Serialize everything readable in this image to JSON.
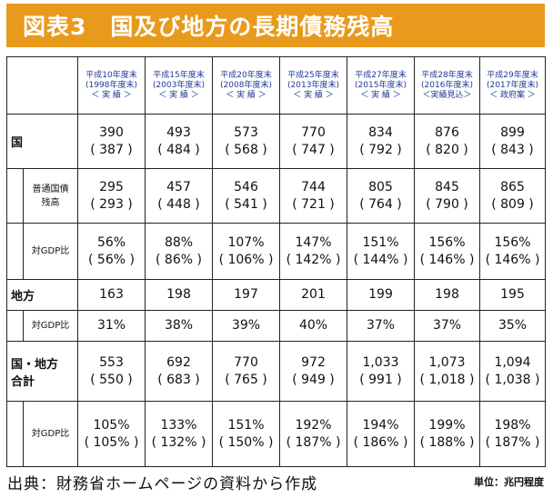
{
  "title": "図表3　国及び地方の長期債務残高",
  "columns": [
    {
      "line1": "平成10年度末",
      "line2": "(1998年度末)",
      "line3": "＜ 実 績 ＞"
    },
    {
      "line1": "平成15年度末",
      "line2": "(2003年度末)",
      "line3": "＜ 実 績 ＞"
    },
    {
      "line1": "平成20年度末",
      "line2": "(2008年度末)",
      "line3": "＜ 実 績 ＞"
    },
    {
      "line1": "平成25年度末",
      "line2": "(2013年度末)",
      "line3": "＜ 実 績 ＞"
    },
    {
      "line1": "平成27年度末",
      "line2": "(2015年度末)",
      "line3": "＜ 実 績 ＞"
    },
    {
      "line1": "平成28年度末",
      "line2": "(2016年度末)",
      "line3": "＜実績見込＞"
    },
    {
      "line1": "平成29年度末",
      "line2": "(2017年度末)",
      "line3": "＜ 政府案 ＞"
    }
  ],
  "rows": {
    "kuni": {
      "label": "国",
      "main": [
        "390",
        "493",
        "573",
        "770",
        "834",
        "876",
        "899"
      ],
      "sub": [
        "( 387 )",
        "( 484 )",
        "( 568 )",
        "( 747 )",
        "( 792 )",
        "( 820 )",
        "( 843 )"
      ]
    },
    "futsu": {
      "label_line1": "普通国債",
      "label_line2": "残高",
      "main": [
        "295",
        "457",
        "546",
        "744",
        "805",
        "845",
        "865"
      ],
      "sub": [
        "( 293 )",
        "( 448 )",
        "( 541 )",
        "( 721 )",
        "( 764 )",
        "( 790 )",
        "( 809 )"
      ]
    },
    "kuni_gdp": {
      "label": "対GDP比",
      "main": [
        "56%",
        "88%",
        "107%",
        "147%",
        "151%",
        "156%",
        "156%"
      ],
      "sub": [
        "( 56% )",
        "( 86% )",
        "( 106% )",
        "( 142% )",
        "( 144% )",
        "( 146% )",
        "( 146% )"
      ]
    },
    "chiho": {
      "label": "地方",
      "main": [
        "163",
        "198",
        "197",
        "201",
        "199",
        "198",
        "195"
      ]
    },
    "chiho_gdp": {
      "label": "対GDP比",
      "main": [
        "31%",
        "38%",
        "39%",
        "40%",
        "37%",
        "37%",
        "35%"
      ]
    },
    "total": {
      "label_line1": "国・地方",
      "label_line2": "合計",
      "main": [
        "553",
        "692",
        "770",
        "972",
        "1,033",
        "1,073",
        "1,094"
      ],
      "sub": [
        "( 550 )",
        "( 683 )",
        "( 765 )",
        "( 949 )",
        "( 991 )",
        "( 1,018 )",
        "( 1,038 )"
      ]
    },
    "total_gdp": {
      "label": "対GDP比",
      "main": [
        "105%",
        "133%",
        "151%",
        "192%",
        "194%",
        "199%",
        "198%"
      ],
      "sub": [
        "( 105% )",
        "( 132% )",
        "( 150% )",
        "( 187% )",
        "( 186% )",
        "( 188% )",
        "( 187% )"
      ]
    }
  },
  "footer": {
    "source": "出典：財務省ホームページの資料から作成",
    "unit": "単位：兆円程度"
  },
  "colors": {
    "title_bg": "#e89a1c",
    "title_text": "#ffffff",
    "header_text": "#1f3a93"
  }
}
